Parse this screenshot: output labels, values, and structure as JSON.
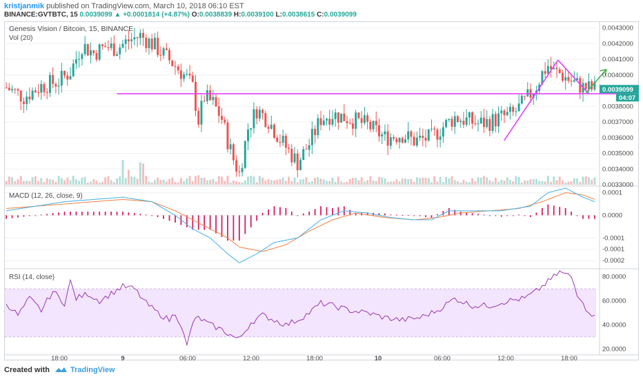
{
  "header": {
    "author": "kristjanmik",
    "published": "published on TradingView.com, March 10, 2018 06:10 EST",
    "symbol": "BINANCE:GVTBTC, 15",
    "last": "0.0039099",
    "change": "+0.0001814 (+4.87%)",
    "o_label": "O:",
    "o_value": "0.0038839",
    "h_label": "H:",
    "h_value": "0.0039100",
    "l_label": "L:",
    "l_value": "0.0038615",
    "c_label": "C:",
    "c_value": "0.0039099"
  },
  "footer": {
    "created_with": "Created with",
    "brand": "TradingView",
    "brand_icon": "tradingview-cloud-icon"
  },
  "colors": {
    "up": "#26a69a",
    "down": "#ef5350",
    "drawing": "#e040fb",
    "arrow": "#4caf50",
    "macd_line": "#4fb6e8",
    "signal_line": "#f5894f",
    "histogram": "#d81b60",
    "rsi_line": "#8e24aa",
    "rsi_band": "#f3e5fd",
    "price_tag": "#26a69a",
    "grid": "#eef0f3"
  },
  "chart_data": [
    {
      "type": "candlestick",
      "title": "Genesis Vision / Bitcoin, 15, BINANCE",
      "volume_label": "Vol (20)",
      "y_ticks": [
        "0.0043000",
        "0.0042000",
        "0.0041000",
        "0.0040000",
        "0.0039000",
        "0.0038000",
        "0.0037000",
        "0.0036000",
        "0.0035000",
        "0.0034000",
        "0.0033000"
      ],
      "y_tick_values": [
        0.0043,
        0.0042,
        0.0041,
        0.004,
        0.0039,
        0.0038,
        0.0037,
        0.0036,
        0.0035,
        0.0034,
        0.0033
      ],
      "ylim": [
        0.0033,
        0.00432
      ],
      "last_price_tag": "0.0039099",
      "countdown_tag": "04:07",
      "horizontal_level": 0.00388,
      "price_path": [
        [
          0,
          0.00392
        ],
        [
          6,
          0.00386
        ],
        [
          12,
          0.00393
        ],
        [
          18,
          0.00396
        ],
        [
          22,
          0.00402
        ],
        [
          26,
          0.00419
        ],
        [
          30,
          0.00414
        ],
        [
          34,
          0.00418
        ],
        [
          38,
          0.00417
        ],
        [
          42,
          0.00422
        ],
        [
          46,
          0.00425
        ],
        [
          50,
          0.0042
        ],
        [
          54,
          0.00413
        ],
        [
          58,
          0.00406
        ],
        [
          62,
          0.00398
        ],
        [
          64,
          0.00392
        ],
        [
          66,
          0.00371
        ],
        [
          68,
          0.00386
        ],
        [
          71,
          0.00382
        ],
        [
          74,
          0.00372
        ],
        [
          76,
          0.00358
        ],
        [
          78,
          0.00346
        ],
        [
          80,
          0.00337
        ],
        [
          83,
          0.00366
        ],
        [
          86,
          0.00378
        ],
        [
          90,
          0.00371
        ],
        [
          94,
          0.00359
        ],
        [
          98,
          0.00349
        ],
        [
          100,
          0.00344
        ],
        [
          104,
          0.00356
        ],
        [
          108,
          0.00372
        ],
        [
          112,
          0.00375
        ],
        [
          118,
          0.00372
        ],
        [
          124,
          0.00368
        ],
        [
          130,
          0.0036
        ],
        [
          136,
          0.00362
        ],
        [
          140,
          0.00358
        ],
        [
          146,
          0.0036
        ],
        [
          150,
          0.00367
        ],
        [
          154,
          0.00373
        ],
        [
          158,
          0.00371
        ],
        [
          162,
          0.00369
        ],
        [
          166,
          0.0037
        ],
        [
          170,
          0.00373
        ],
        [
          174,
          0.00375
        ],
        [
          178,
          0.00383
        ],
        [
          182,
          0.00393
        ],
        [
          184,
          0.00401
        ],
        [
          186,
          0.00406
        ],
        [
          188,
          0.00402
        ],
        [
          190,
          0.00401
        ],
        [
          194,
          0.00396
        ],
        [
          198,
          0.00392
        ],
        [
          202,
          0.00391
        ]
      ],
      "time_axis": {
        "ticks": [
          "18:00",
          "9",
          "06:00",
          "12:00",
          "18:00",
          "10",
          "06:00",
          "12:00",
          "18:00"
        ]
      }
    },
    {
      "type": "line",
      "title": "MACD (12, 26, close, 9)",
      "y_ticks": [
        "0.0001",
        "0.0000",
        "-0.0001",
        "-0.0001",
        "-0.0002"
      ],
      "y_tick_values": [
        0.0001,
        0.0,
        -0.0001,
        -0.00015,
        -0.0002
      ],
      "ylim": [
        -0.00023,
        0.00012
      ],
      "series": [
        {
          "name": "MACD",
          "points": [
            [
              0,
              2e-05
            ],
            [
              20,
              6e-05
            ],
            [
              40,
              8e-05
            ],
            [
              50,
              6e-05
            ],
            [
              58,
              0.0
            ],
            [
              64,
              -6e-05
            ],
            [
              70,
              -0.0001
            ],
            [
              76,
              -0.00017
            ],
            [
              80,
              -0.00021
            ],
            [
              86,
              -0.00017
            ],
            [
              92,
              -0.00012
            ],
            [
              100,
              -0.0001
            ],
            [
              108,
              -2e-05
            ],
            [
              116,
              2e-05
            ],
            [
              124,
              1e-05
            ],
            [
              132,
              -1e-05
            ],
            [
              140,
              -2e-05
            ],
            [
              146,
              -2e-05
            ],
            [
              152,
              2e-05
            ],
            [
              160,
              2e-05
            ],
            [
              170,
              2e-05
            ],
            [
              180,
              4e-05
            ],
            [
              186,
              0.0001
            ],
            [
              192,
              0.00012
            ],
            [
              198,
              8e-05
            ],
            [
              202,
              6e-05
            ]
          ]
        },
        {
          "name": "Signal",
          "points": [
            [
              0,
              3e-05
            ],
            [
              20,
              5e-05
            ],
            [
              40,
              7e-05
            ],
            [
              50,
              6e-05
            ],
            [
              58,
              2e-05
            ],
            [
              64,
              -2e-05
            ],
            [
              70,
              -6e-05
            ],
            [
              76,
              -0.0001
            ],
            [
              80,
              -0.00014
            ],
            [
              88,
              -0.00016
            ],
            [
              96,
              -0.00013
            ],
            [
              104,
              -7e-05
            ],
            [
              112,
              -2e-05
            ],
            [
              120,
              1e-05
            ],
            [
              130,
              -1e-05
            ],
            [
              140,
              -2e-05
            ],
            [
              148,
              -1e-05
            ],
            [
              156,
              1e-05
            ],
            [
              166,
              2e-05
            ],
            [
              176,
              3e-05
            ],
            [
              184,
              6e-05
            ],
            [
              192,
              0.0001
            ],
            [
              198,
              9e-05
            ],
            [
              202,
              7e-05
            ]
          ]
        }
      ],
      "histogram_bars": 60
    },
    {
      "type": "line",
      "title": "RSI (14, close)",
      "y_ticks": [
        "80.0000",
        "60.0000",
        "40.0000",
        "20.0000"
      ],
      "y_tick_values": [
        80,
        60,
        40,
        20
      ],
      "ylim": [
        15,
        85
      ],
      "band": [
        30,
        70
      ],
      "series": [
        {
          "name": "RSI",
          "points": [
            [
              0,
              58
            ],
            [
              4,
              48
            ],
            [
              8,
              62
            ],
            [
              12,
              52
            ],
            [
              16,
              68
            ],
            [
              20,
              58
            ],
            [
              22,
              76
            ],
            [
              24,
              62
            ],
            [
              28,
              66
            ],
            [
              32,
              60
            ],
            [
              36,
              66
            ],
            [
              40,
              72
            ],
            [
              44,
              70
            ],
            [
              48,
              58
            ],
            [
              52,
              50
            ],
            [
              56,
              44
            ],
            [
              58,
              50
            ],
            [
              60,
              40
            ],
            [
              62,
              22
            ],
            [
              64,
              42
            ],
            [
              66,
              46
            ],
            [
              70,
              40
            ],
            [
              74,
              36
            ],
            [
              78,
              30
            ],
            [
              80,
              28
            ],
            [
              84,
              42
            ],
            [
              88,
              48
            ],
            [
              92,
              44
            ],
            [
              96,
              40
            ],
            [
              100,
              44
            ],
            [
              104,
              50
            ],
            [
              108,
              58
            ],
            [
              112,
              56
            ],
            [
              118,
              52
            ],
            [
              124,
              50
            ],
            [
              130,
              46
            ],
            [
              136,
              44
            ],
            [
              142,
              46
            ],
            [
              148,
              52
            ],
            [
              154,
              62
            ],
            [
              160,
              56
            ],
            [
              166,
              56
            ],
            [
              172,
              60
            ],
            [
              178,
              62
            ],
            [
              182,
              68
            ],
            [
              186,
              76
            ],
            [
              190,
              84
            ],
            [
              194,
              80
            ],
            [
              196,
              66
            ],
            [
              198,
              60
            ],
            [
              200,
              48
            ],
            [
              202,
              50
            ]
          ]
        }
      ]
    }
  ]
}
